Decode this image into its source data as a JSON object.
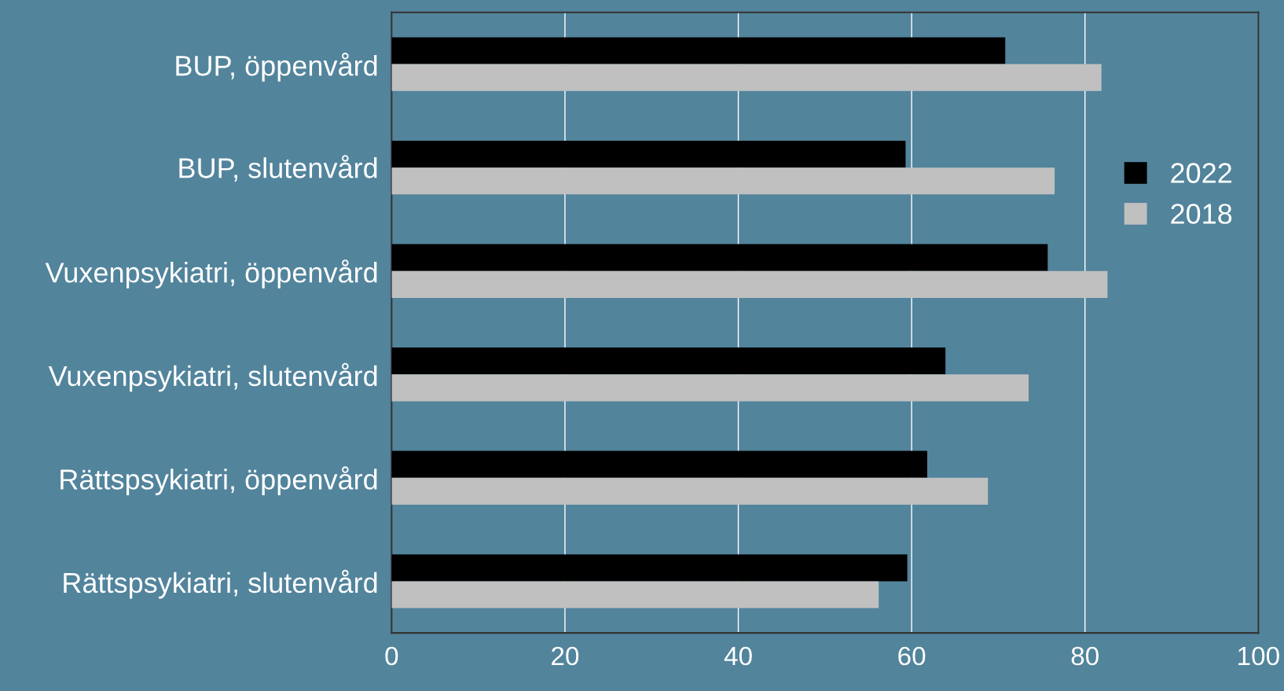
{
  "chart_data": {
    "type": "bar",
    "orientation": "horizontal",
    "categories": [
      "BUP, öppenvård",
      "BUP, slutenvård",
      "Vuxenpsykiatri, öppenvård",
      "Vuxenpsykiatri, slutenvård",
      "Rättspsykiatri, öppenvård",
      "Rättspsykiatri, slutenvård"
    ],
    "series": [
      {
        "name": "2022",
        "color": "#000000",
        "values": [
          70.8,
          59.3,
          75.7,
          63.9,
          61.8,
          59.5
        ]
      },
      {
        "name": "2018",
        "color": "#c0c0c0",
        "values": [
          81.9,
          76.5,
          82.6,
          73.5,
          68.8,
          56.2
        ]
      }
    ],
    "xlim": [
      0,
      100
    ],
    "xticks": [
      0,
      20,
      40,
      60,
      80,
      100
    ],
    "grid": "x",
    "legend": "top right"
  }
}
